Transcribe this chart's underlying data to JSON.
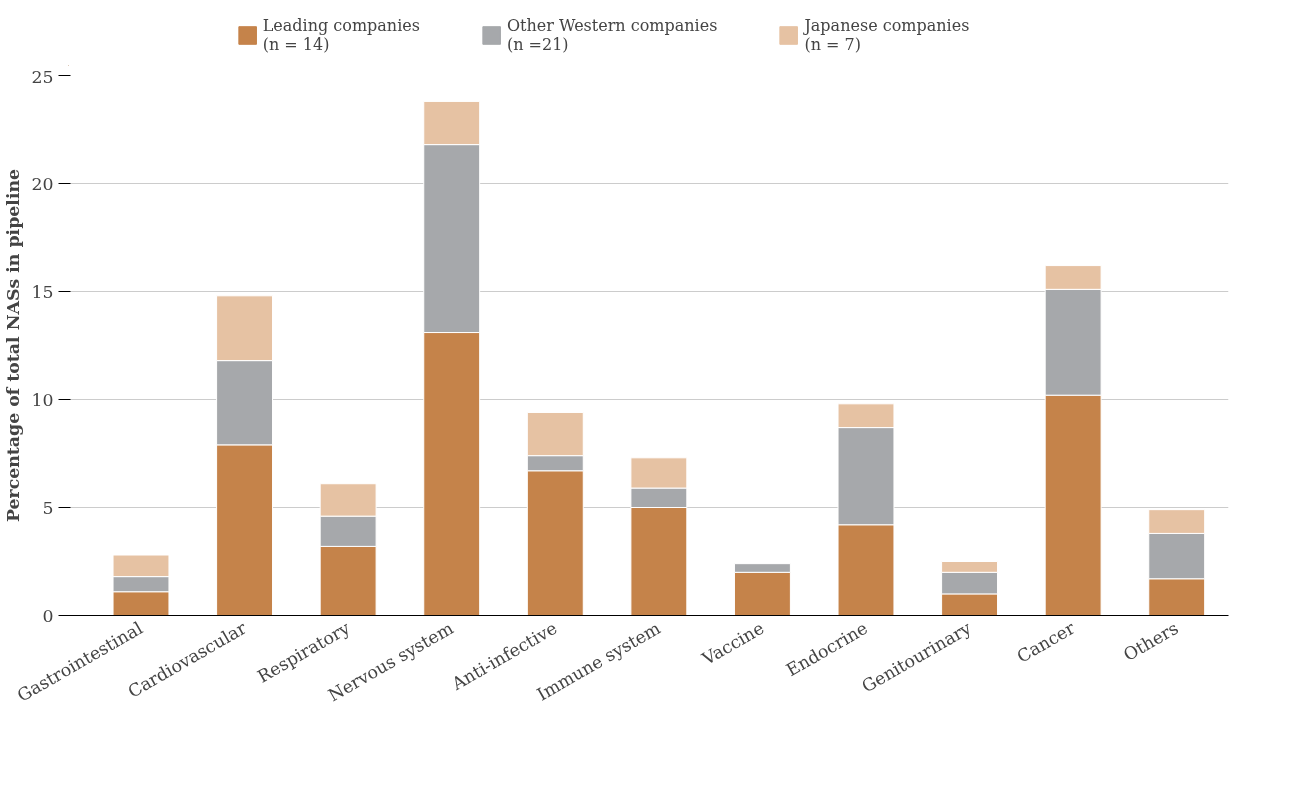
{
  "chart_data": {
    "type": "bar",
    "stacked": true,
    "ylabel": "Percentage of total NASs in pipeline",
    "categories": [
      "Gastrointestinal",
      "Cardiovascular",
      "Respiratory",
      "Nervous system",
      "Anti-infective",
      "Immune system",
      "Vaccine",
      "Endocrine",
      "Genitourinary",
      "Cancer",
      "Others"
    ],
    "series": [
      {
        "name": "Leading companies\n(n = 14)",
        "color": "#c5834a",
        "values": [
          1.1,
          7.9,
          3.2,
          13.1,
          6.7,
          5.0,
          2.0,
          4.2,
          1.0,
          10.2,
          1.7
        ]
      },
      {
        "name": "Other Western companies\n(n =21)",
        "color": "#a6a8ab",
        "values": [
          0.7,
          3.9,
          1.4,
          8.7,
          0.7,
          0.9,
          0.4,
          4.5,
          1.0,
          4.9,
          2.1
        ]
      },
      {
        "name": "Japanese companies\n(n = 7)",
        "color": "#e6c2a3",
        "values": [
          1.0,
          3.0,
          1.5,
          2.0,
          2.0,
          1.4,
          null,
          1.1,
          0.5,
          1.1,
          1.1
        ]
      }
    ],
    "ylim": [
      0,
      25
    ],
    "yticks": [
      0,
      5,
      10,
      15,
      20,
      25
    ],
    "grid": "y",
    "legend": "top"
  }
}
